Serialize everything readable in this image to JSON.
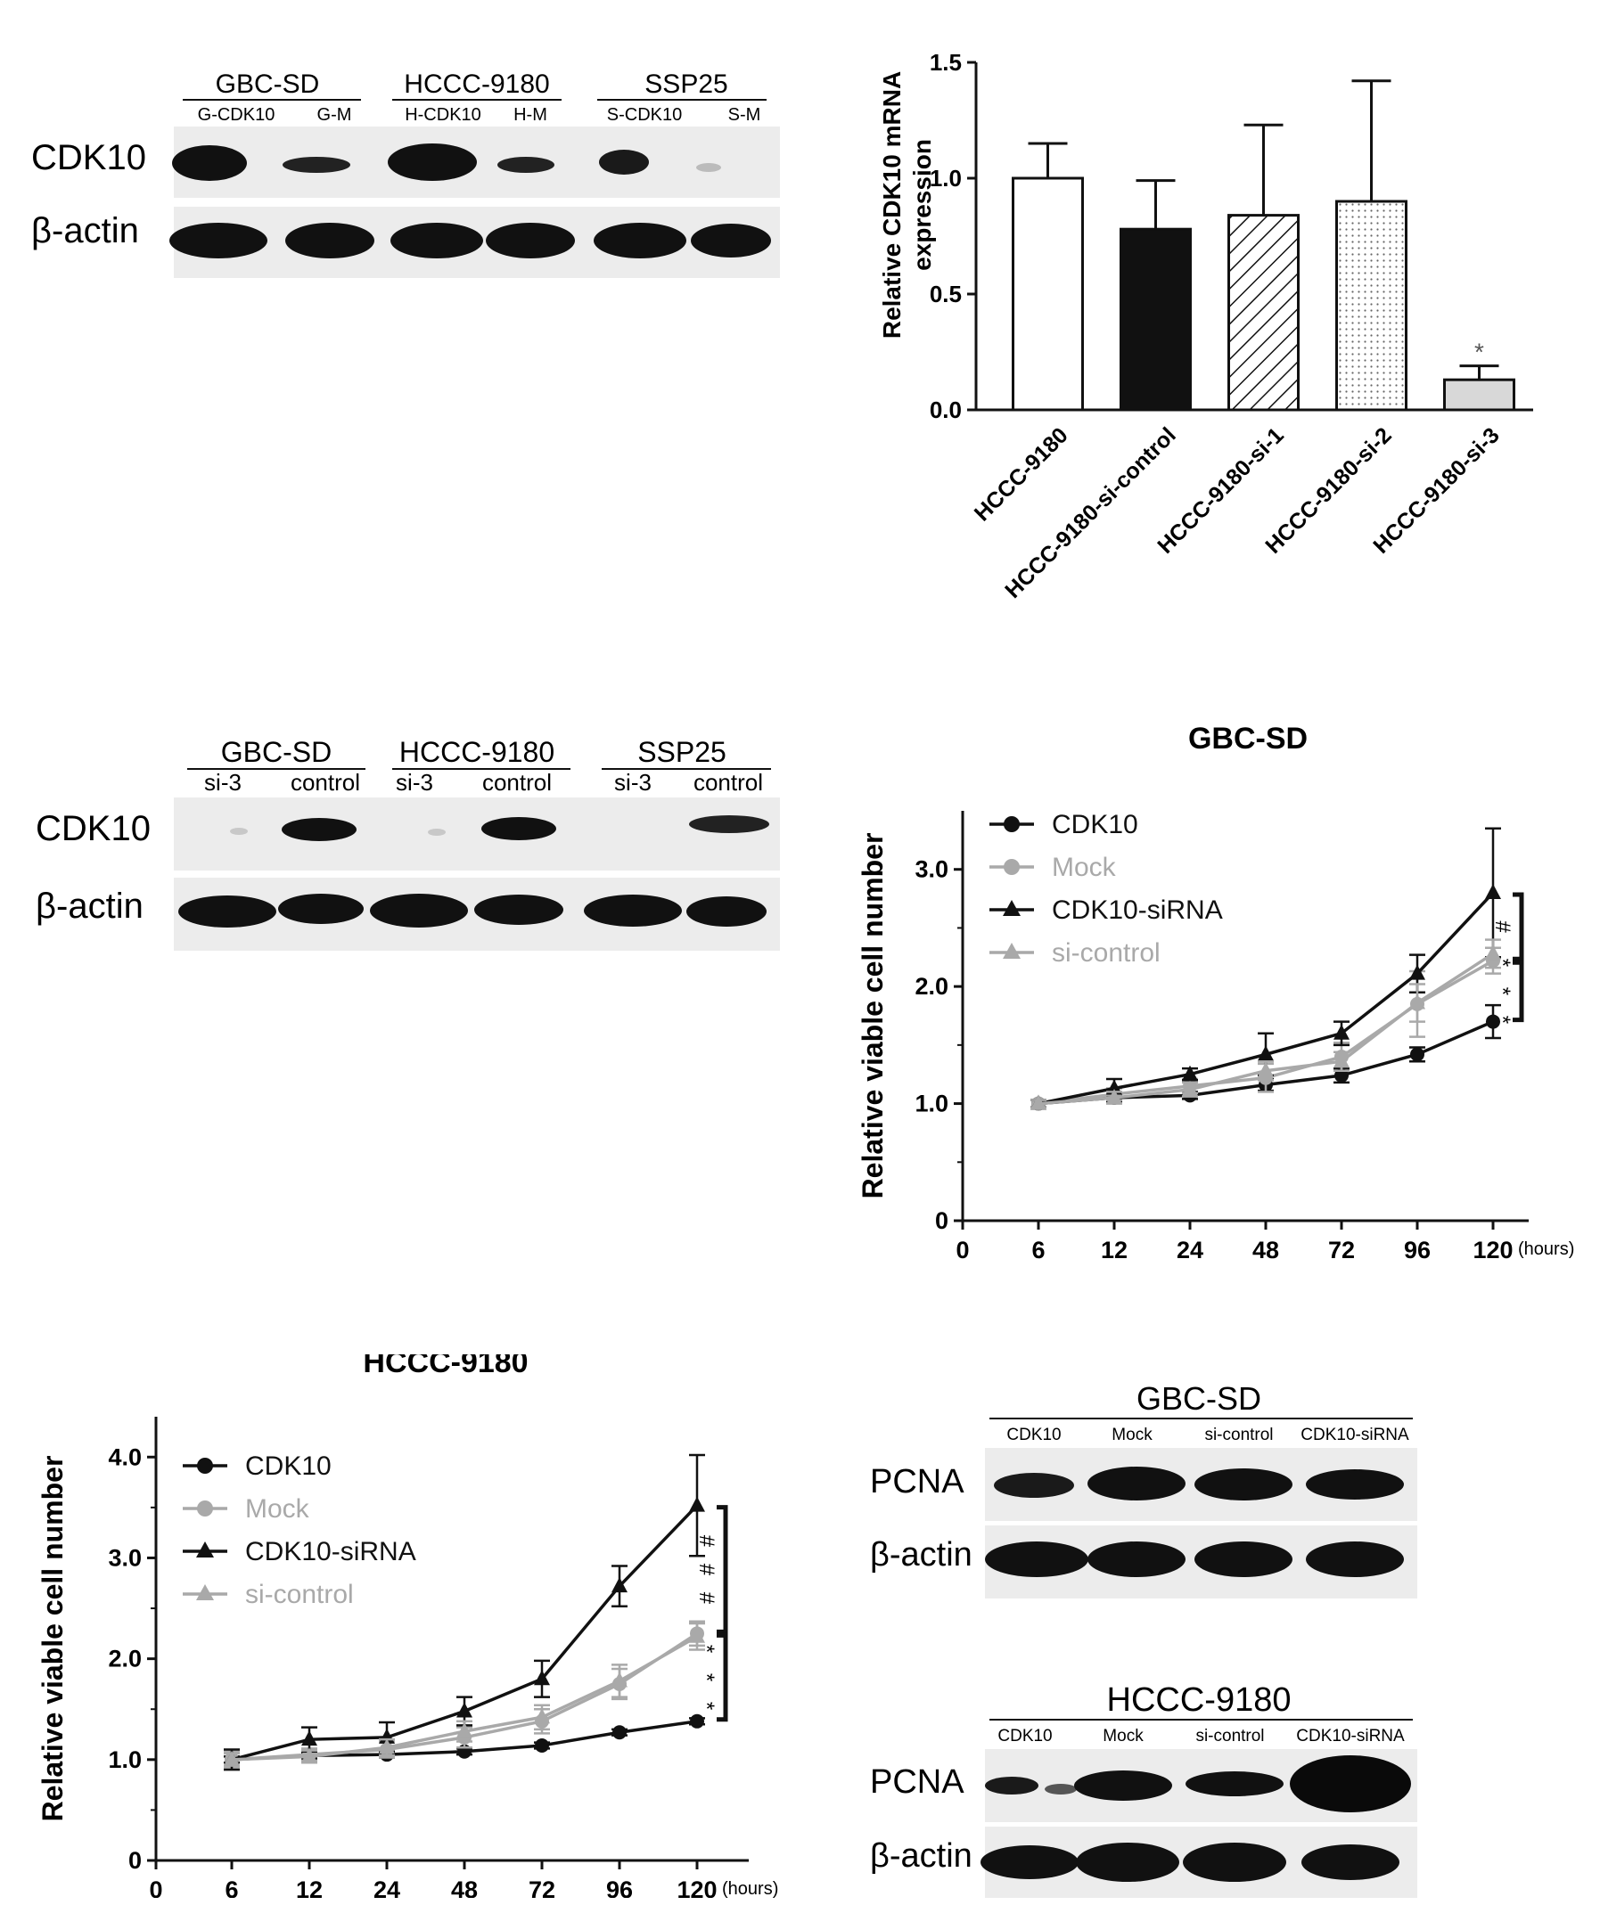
{
  "panel_a_blot": {
    "groups": [
      {
        "name": "GBC-SD",
        "lanes": [
          "G-CDK10",
          "G-M"
        ]
      },
      {
        "name": "HCCC-9180",
        "lanes": [
          "H-CDK10",
          "H-M"
        ]
      },
      {
        "name": "SSP25",
        "lanes": [
          "S-CDK10",
          "S-M"
        ]
      }
    ],
    "rows": [
      "CDK10",
      "β-actin"
    ]
  },
  "panel_c_blot": {
    "groups": [
      {
        "name": "GBC-SD",
        "lanes": [
          "si-3",
          "control"
        ]
      },
      {
        "name": "HCCC-9180",
        "lanes": [
          "si-3",
          "control"
        ]
      },
      {
        "name": "SSP25",
        "lanes": [
          "si-3",
          "control"
        ]
      }
    ],
    "rows": [
      "CDK10",
      "β-actin"
    ]
  },
  "panel_f_blots": [
    {
      "title": "GBC-SD",
      "lanes": [
        "CDK10",
        "Mock",
        "si-control",
        "CDK10-siRNA"
      ],
      "rows": [
        "PCNA",
        "β-actin"
      ]
    },
    {
      "title": "HCCC-9180",
      "lanes": [
        "CDK10",
        "Mock",
        "si-control",
        "CDK10-siRNA"
      ],
      "rows": [
        "PCNA",
        "β-actin"
      ]
    }
  ],
  "colors": {
    "black": "#111111",
    "gray": "#a9a9a9"
  },
  "chart_data": [
    {
      "type": "bar",
      "title": "",
      "ylabel": "Relative CDK10 mRNA expression",
      "ylabel_lines": [
        "Relative CDK10 mRNA",
        "expression"
      ],
      "categories": [
        "HCCC-9180",
        "HCCC-9180-si-control",
        "HCCC-9180-si-1",
        "HCCC-9180-si-2",
        "HCCC-9180-si-3"
      ],
      "values": [
        1.0,
        0.78,
        0.84,
        0.9,
        0.13
      ],
      "errors": [
        0.15,
        0.21,
        0.39,
        0.52,
        0.06
      ],
      "fills": [
        "white",
        "black",
        "hatch",
        "dots",
        "light-gray"
      ],
      "annotation": {
        "category": "HCCC-9180-si-3",
        "text": "*"
      },
      "ylim": [
        0,
        1.5
      ],
      "yticks": [
        "0.0",
        "0.5",
        "1.0",
        "1.5"
      ]
    },
    {
      "type": "line",
      "title": "GBC-SD",
      "ylabel": "Relative viable cell number",
      "x_ticks": [
        "0",
        "6",
        "12",
        "24",
        "48",
        "72",
        "96",
        "120"
      ],
      "x_unit": "(hours)",
      "yticks": [
        "0",
        "1.0",
        "2.0",
        "3.0"
      ],
      "ylim": [
        0,
        3.5
      ],
      "series": [
        {
          "name": "CDK10",
          "marker": "circle",
          "color": "black",
          "values": [
            1.0,
            1.05,
            1.07,
            1.16,
            1.24,
            1.42,
            1.7
          ],
          "errors": [
            0.03,
            0.03,
            0.03,
            0.05,
            0.06,
            0.06,
            0.14
          ]
        },
        {
          "name": "Mock",
          "marker": "circle",
          "color": "gray",
          "values": [
            1.0,
            1.08,
            1.15,
            1.22,
            1.4,
            1.85,
            2.22
          ],
          "errors": [
            0.03,
            0.05,
            0.06,
            0.12,
            0.12,
            0.28,
            0.11
          ]
        },
        {
          "name": "CDK10-siRNA",
          "marker": "triangle",
          "color": "black",
          "values": [
            1.0,
            1.13,
            1.25,
            1.42,
            1.6,
            2.11,
            2.8
          ],
          "errors": [
            0.03,
            0.08,
            0.05,
            0.18,
            0.1,
            0.16,
            0.55
          ]
        },
        {
          "name": "si-control",
          "marker": "triangle",
          "color": "gray",
          "values": [
            1.0,
            1.05,
            1.12,
            1.28,
            1.36,
            1.86,
            2.28
          ],
          "errors": [
            0.03,
            0.05,
            0.06,
            0.08,
            0.08,
            0.16,
            0.12
          ]
        }
      ],
      "brackets": [
        {
          "from": 2.8,
          "to": 2.22,
          "label": "#"
        },
        {
          "from": 2.22,
          "to": 1.7,
          "label": "***"
        }
      ]
    },
    {
      "type": "line",
      "title": "HCCC-9180",
      "ylabel": "Relative viable cell number",
      "x_ticks": [
        "0",
        "6",
        "12",
        "24",
        "48",
        "72",
        "96",
        "120"
      ],
      "x_unit": "(hours)",
      "yticks": [
        "0",
        "1.0",
        "2.0",
        "3.0",
        "4.0"
      ],
      "ylim": [
        0,
        4.4
      ],
      "series": [
        {
          "name": "CDK10",
          "marker": "circle",
          "color": "black",
          "values": [
            1.0,
            1.04,
            1.05,
            1.08,
            1.14,
            1.27,
            1.38
          ],
          "errors": [
            0.03,
            0.03,
            0.03,
            0.03,
            0.03,
            0.03,
            0.03
          ]
        },
        {
          "name": "Mock",
          "marker": "circle",
          "color": "gray",
          "values": [
            1.0,
            1.05,
            1.1,
            1.22,
            1.38,
            1.75,
            2.25
          ],
          "errors": [
            0.08,
            0.06,
            0.08,
            0.1,
            0.12,
            0.15,
            0.12
          ]
        },
        {
          "name": "CDK10-siRNA",
          "marker": "triangle",
          "color": "black",
          "values": [
            1.0,
            1.2,
            1.22,
            1.48,
            1.8,
            2.72,
            3.52
          ],
          "errors": [
            0.1,
            0.12,
            0.15,
            0.14,
            0.18,
            0.2,
            0.5
          ]
        },
        {
          "name": "si-control",
          "marker": "triangle",
          "color": "gray",
          "values": [
            1.0,
            1.03,
            1.12,
            1.28,
            1.42,
            1.78,
            2.22
          ],
          "errors": [
            0.06,
            0.06,
            0.08,
            0.1,
            0.12,
            0.16,
            0.13
          ]
        }
      ],
      "brackets": [
        {
          "from": 3.52,
          "to": 2.25,
          "label": "###"
        },
        {
          "from": 2.25,
          "to": 1.38,
          "label": "***"
        }
      ]
    }
  ]
}
